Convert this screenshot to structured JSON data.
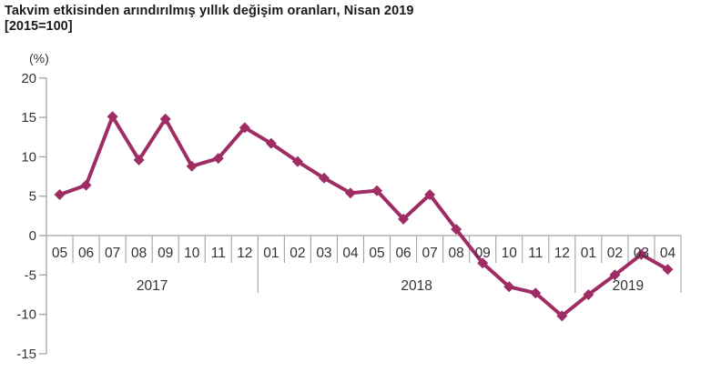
{
  "title": "Takvim etkisinden arındırılmış yıllık değişim oranları, Nisan 2019",
  "subtitle": "[2015=100]",
  "unit_label": "(%)",
  "chart_data": {
    "type": "line",
    "title": "Takvim etkisinden arındırılmış yıllık değişim oranları, Nisan 2019 [2015=100]",
    "ylabel": "(%)",
    "ylim": [
      -15,
      20
    ],
    "yticks": [
      20,
      15,
      10,
      5,
      0,
      -5,
      -10,
      -15
    ],
    "grid": "zero-line-only",
    "legend": "none",
    "marker": "diamond",
    "line_color": "#9E2D63",
    "axis_color": "#A3A3A3",
    "label_color": "#333333",
    "year_groups": [
      {
        "year": "2017",
        "months": [
          "05",
          "06",
          "07",
          "08",
          "09",
          "10",
          "11",
          "12"
        ],
        "values": [
          5.2,
          6.4,
          15.1,
          9.6,
          14.8,
          8.8,
          9.8,
          13.7
        ]
      },
      {
        "year": "2018",
        "months": [
          "01",
          "02",
          "03",
          "04",
          "05",
          "06",
          "07",
          "08",
          "09",
          "10",
          "11",
          "12"
        ],
        "values": [
          11.7,
          9.4,
          7.3,
          5.4,
          5.7,
          2.1,
          5.2,
          0.8,
          -3.5,
          -6.5,
          -7.3,
          -10.2
        ]
      },
      {
        "year": "2019",
        "months": [
          "01",
          "02",
          "03",
          "04"
        ],
        "values": [
          -7.5,
          -5.0,
          -2.4,
          -4.3
        ]
      }
    ]
  }
}
